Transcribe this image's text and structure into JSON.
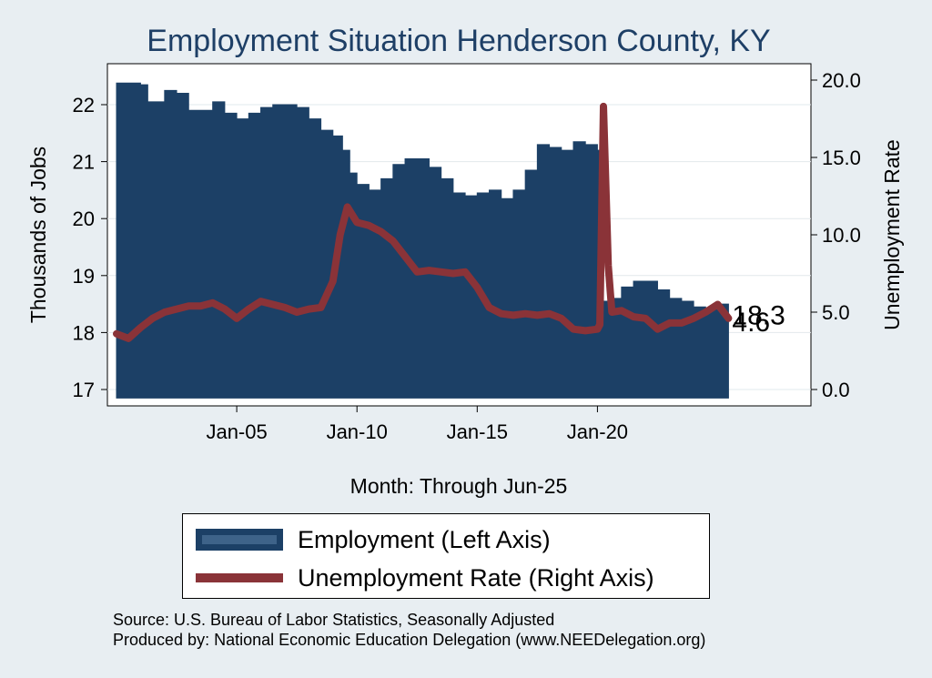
{
  "chart_data": {
    "type": "area+line",
    "title": "Employment Situation Henderson  County, KY",
    "xlabel": "Month: Through Jun-25",
    "ylabel_left": "Thousands of Jobs",
    "ylabel_right": "Unemployment Rate",
    "x_range": [
      "Jan-00",
      "Jun-25"
    ],
    "x_ticks": [
      "Jan-05",
      "Jan-10",
      "Jan-15",
      "Jan-20"
    ],
    "left_axis": {
      "ylim": [
        16.85,
        22.5
      ],
      "ticks": [
        "17",
        "18",
        "19",
        "20",
        "21",
        "22"
      ]
    },
    "right_axis": {
      "ylim": [
        0,
        20
      ],
      "ticks": [
        "0.0",
        "5.0",
        "10.0",
        "15.0",
        "20.0"
      ]
    },
    "series": [
      {
        "name": "Employment (Left Axis)",
        "type": "area",
        "axis": "left",
        "color": "#1c4066",
        "points": [
          [
            2000.0,
            22.38
          ],
          [
            2001.0,
            22.35
          ],
          [
            2001.3,
            22.05
          ],
          [
            2002.0,
            22.25
          ],
          [
            2002.5,
            22.2
          ],
          [
            2003.0,
            21.9
          ],
          [
            2003.5,
            21.9
          ],
          [
            2004.0,
            22.05
          ],
          [
            2004.5,
            21.85
          ],
          [
            2005.0,
            21.75
          ],
          [
            2005.5,
            21.85
          ],
          [
            2006.0,
            21.95
          ],
          [
            2006.5,
            22.0
          ],
          [
            2007.0,
            22.0
          ],
          [
            2007.5,
            21.95
          ],
          [
            2008.0,
            21.75
          ],
          [
            2008.5,
            21.55
          ],
          [
            2009.0,
            21.45
          ],
          [
            2009.4,
            21.2
          ],
          [
            2009.7,
            20.8
          ],
          [
            2010.0,
            20.6
          ],
          [
            2010.5,
            20.5
          ],
          [
            2011.0,
            20.7
          ],
          [
            2011.5,
            20.95
          ],
          [
            2012.0,
            21.05
          ],
          [
            2012.5,
            21.05
          ],
          [
            2013.0,
            20.9
          ],
          [
            2013.5,
            20.7
          ],
          [
            2014.0,
            20.45
          ],
          [
            2014.5,
            20.4
          ],
          [
            2015.0,
            20.45
          ],
          [
            2015.5,
            20.5
          ],
          [
            2016.0,
            20.35
          ],
          [
            2016.5,
            20.5
          ],
          [
            2017.0,
            20.85
          ],
          [
            2017.5,
            21.3
          ],
          [
            2018.0,
            21.25
          ],
          [
            2018.5,
            21.2
          ],
          [
            2019.0,
            21.35
          ],
          [
            2019.5,
            21.3
          ],
          [
            2020.0,
            21.2
          ],
          [
            2020.25,
            18.55
          ],
          [
            2020.6,
            18.6
          ],
          [
            2021.0,
            18.8
          ],
          [
            2021.5,
            18.9
          ],
          [
            2022.0,
            18.9
          ],
          [
            2022.5,
            18.75
          ],
          [
            2023.0,
            18.6
          ],
          [
            2023.5,
            18.55
          ],
          [
            2024.0,
            18.45
          ],
          [
            2024.5,
            18.4
          ],
          [
            2025.0,
            18.5
          ],
          [
            2025.45,
            18.3
          ]
        ]
      },
      {
        "name": "Unemployment Rate (Right Axis)",
        "type": "line",
        "axis": "right",
        "color": "#8a3338",
        "points": [
          [
            2000.0,
            3.6
          ],
          [
            2000.5,
            3.3
          ],
          [
            2001.0,
            4.0
          ],
          [
            2001.5,
            4.6
          ],
          [
            2002.0,
            5.0
          ],
          [
            2002.5,
            5.2
          ],
          [
            2003.0,
            5.4
          ],
          [
            2003.5,
            5.4
          ],
          [
            2004.0,
            5.6
          ],
          [
            2004.5,
            5.2
          ],
          [
            2005.0,
            4.6
          ],
          [
            2005.5,
            5.2
          ],
          [
            2006.0,
            5.7
          ],
          [
            2006.5,
            5.5
          ],
          [
            2007.0,
            5.3
          ],
          [
            2007.5,
            5.0
          ],
          [
            2008.0,
            5.2
          ],
          [
            2008.5,
            5.3
          ],
          [
            2009.0,
            7.0
          ],
          [
            2009.3,
            10.0
          ],
          [
            2009.6,
            11.8
          ],
          [
            2010.0,
            10.8
          ],
          [
            2010.5,
            10.6
          ],
          [
            2011.0,
            10.2
          ],
          [
            2011.5,
            9.6
          ],
          [
            2012.0,
            8.6
          ],
          [
            2012.5,
            7.6
          ],
          [
            2013.0,
            7.7
          ],
          [
            2013.5,
            7.6
          ],
          [
            2014.0,
            7.5
          ],
          [
            2014.5,
            7.6
          ],
          [
            2015.0,
            6.6
          ],
          [
            2015.5,
            5.3
          ],
          [
            2016.0,
            4.9
          ],
          [
            2016.5,
            4.8
          ],
          [
            2017.0,
            4.9
          ],
          [
            2017.5,
            4.8
          ],
          [
            2018.0,
            4.9
          ],
          [
            2018.5,
            4.6
          ],
          [
            2019.0,
            3.9
          ],
          [
            2019.5,
            3.8
          ],
          [
            2020.0,
            3.9
          ],
          [
            2020.1,
            4.2
          ],
          [
            2020.25,
            18.3
          ],
          [
            2020.45,
            8.0
          ],
          [
            2020.6,
            5.0
          ],
          [
            2021.0,
            5.1
          ],
          [
            2021.5,
            4.7
          ],
          [
            2022.0,
            4.6
          ],
          [
            2022.5,
            3.9
          ],
          [
            2023.0,
            4.3
          ],
          [
            2023.5,
            4.3
          ],
          [
            2024.0,
            4.6
          ],
          [
            2024.5,
            5.0
          ],
          [
            2025.0,
            5.5
          ],
          [
            2025.45,
            4.6
          ]
        ]
      }
    ],
    "end_labels": [
      "18.3",
      "4.6"
    ]
  },
  "legend": {
    "employment": "Employment (Left Axis)",
    "unemployment": "Unemployment Rate (Right Axis)"
  },
  "footer": {
    "source": "Source: U.S. Bureau of Labor Statistics, Seasonally Adjusted",
    "producer": "Produced by: National Economic Education Delegation (www.NEEDelegation.org)"
  },
  "colors": {
    "employment": "#1c4066",
    "unemployment": "#8a3338",
    "background": "#e8eef2",
    "plot_bg": "#ffffff",
    "grid": "#e2e8ec"
  }
}
